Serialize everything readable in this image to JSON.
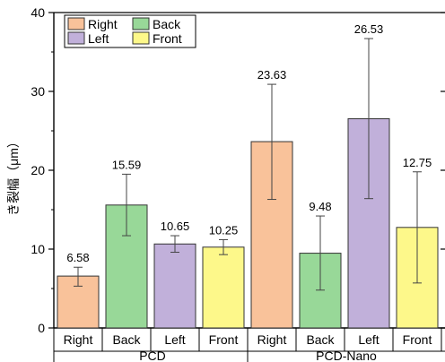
{
  "chart_data": {
    "type": "bar",
    "ylabel": "き裂幅（μm）",
    "ylim": [
      0,
      40
    ],
    "y_ticks": [
      "0",
      "10",
      "20",
      "30",
      "40"
    ],
    "groups": [
      {
        "label": "PCD",
        "categories": [
          "Right",
          "Back",
          "Left",
          "Front"
        ]
      },
      {
        "label": "PCD-Nano",
        "categories": [
          "Right",
          "Back",
          "Left",
          "Front"
        ]
      }
    ],
    "bars": [
      {
        "group": "PCD",
        "category": "Right",
        "value": 6.58,
        "label": "6.58",
        "err_low": 5.3,
        "err_high": 7.7
      },
      {
        "group": "PCD",
        "category": "Back",
        "value": 15.59,
        "label": "15.59",
        "err_low": 11.7,
        "err_high": 19.5
      },
      {
        "group": "PCD",
        "category": "Left",
        "value": 10.65,
        "label": "10.65",
        "err_low": 9.6,
        "err_high": 11.7
      },
      {
        "group": "PCD",
        "category": "Front",
        "value": 10.25,
        "label": "10.25",
        "err_low": 9.3,
        "err_high": 11.2
      },
      {
        "group": "PCD-Nano",
        "category": "Right",
        "value": 23.63,
        "label": "23.63",
        "err_low": 16.3,
        "err_high": 30.9
      },
      {
        "group": "PCD-Nano",
        "category": "Back",
        "value": 9.48,
        "label": "9.48",
        "err_low": 4.8,
        "err_high": 14.2
      },
      {
        "group": "PCD-Nano",
        "category": "Left",
        "value": 26.53,
        "label": "26.53",
        "err_low": 16.4,
        "err_high": 36.7
      },
      {
        "group": "PCD-Nano",
        "category": "Front",
        "value": 12.75,
        "label": "12.75",
        "err_low": 5.7,
        "err_high": 19.8
      }
    ],
    "legend": {
      "placement": "top-left",
      "entries": [
        {
          "name": "Right",
          "color": "#f9c29a"
        },
        {
          "name": "Back",
          "color": "#98d898"
        },
        {
          "name": "Left",
          "color": "#c1b0da"
        },
        {
          "name": "Front",
          "color": "#fdf88a"
        }
      ]
    },
    "colors": {
      "Right": "#f9c29a",
      "Back": "#98d898",
      "Left": "#c1b0da",
      "Front": "#fdf88a"
    },
    "grid": false
  }
}
